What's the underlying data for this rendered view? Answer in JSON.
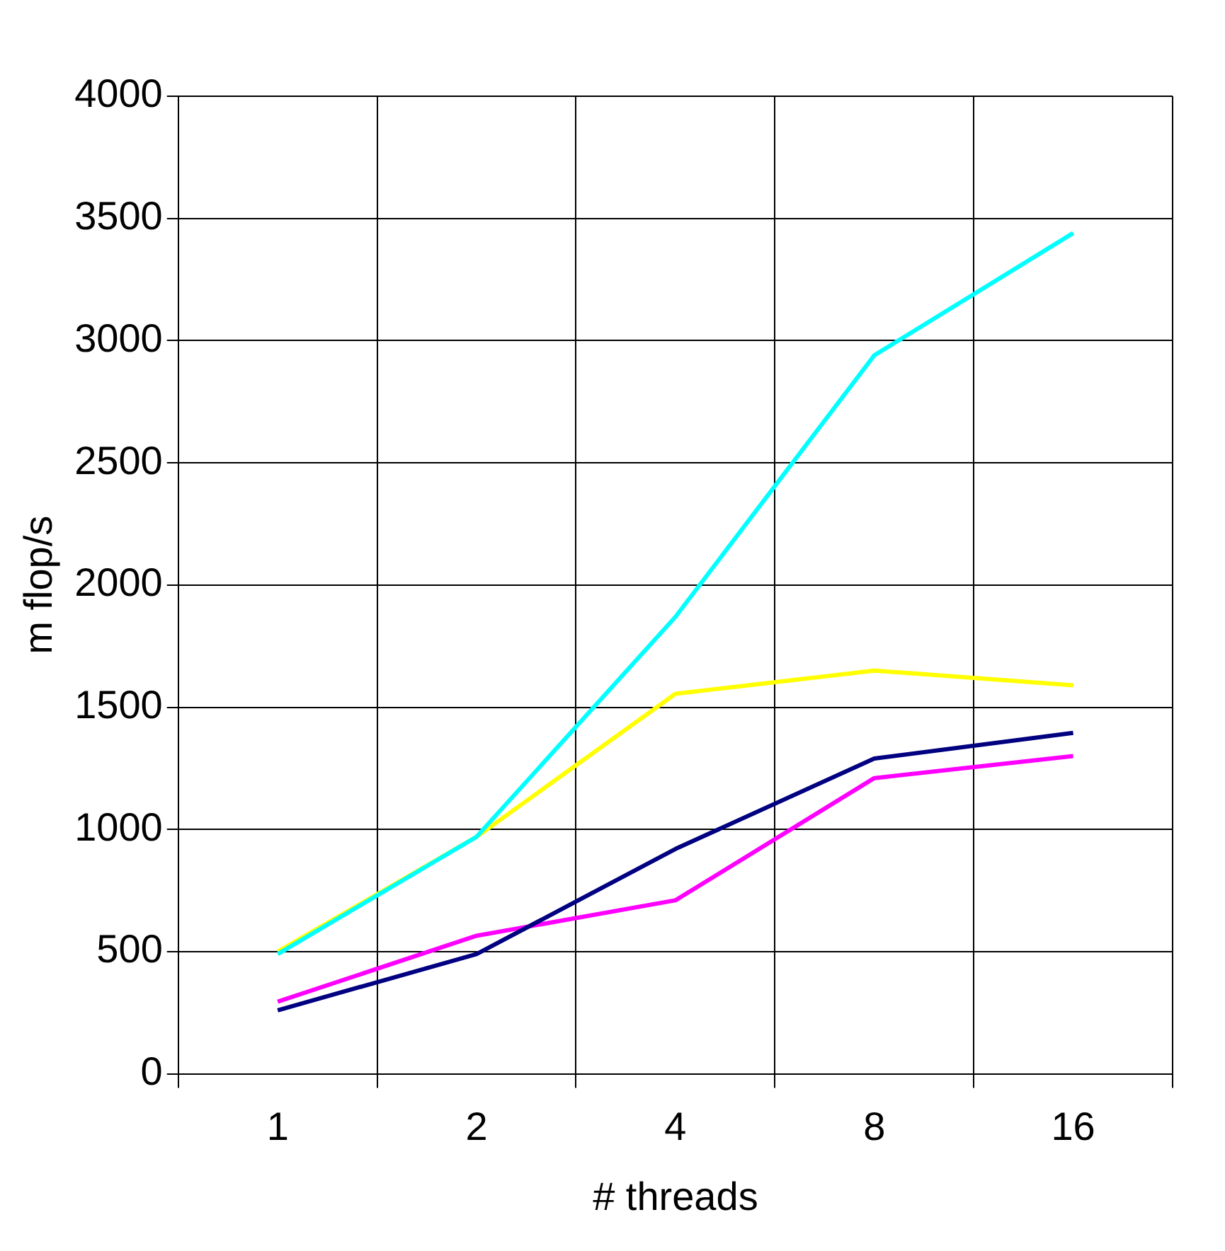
{
  "chart_data": {
    "type": "line",
    "xlabel": "# threads",
    "ylabel": "m flop/s",
    "categories": [
      "1",
      "2",
      "4",
      "8",
      "16"
    ],
    "series": [
      {
        "color": "#00ffff",
        "values": [
          490,
          970,
          1870,
          2940,
          3440
        ]
      },
      {
        "color": "#ffff00",
        "values": [
          500,
          970,
          1555,
          1650,
          1590
        ]
      },
      {
        "color": "#000080",
        "values": [
          260,
          490,
          920,
          1290,
          1395
        ]
      },
      {
        "color": "#ff00ff",
        "values": [
          295,
          565,
          710,
          1210,
          1300
        ]
      }
    ],
    "ylim": [
      0,
      4000
    ],
    "yticks": [
      0,
      500,
      1000,
      1500,
      2000,
      2500,
      3000,
      3500,
      4000
    ],
    "grid": true,
    "legend": false,
    "marker": "none",
    "line_style": "solid"
  }
}
